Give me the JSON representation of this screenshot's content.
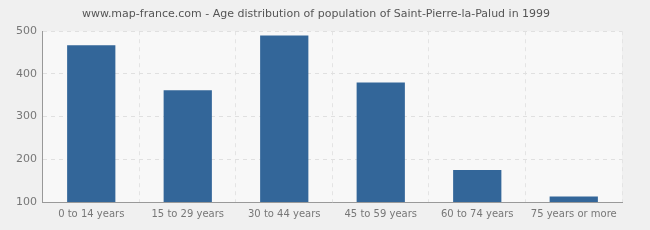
{
  "chart_data": {
    "type": "bar",
    "title": "www.map-france.com - Age distribution of population of Saint-Pierre-la-Palud in 1999",
    "categories": [
      "0 to 14 years",
      "15 to 29 years",
      "30 to 44 years",
      "45 to 59 years",
      "60 to 74 years",
      "75 years or more"
    ],
    "values": [
      467,
      362,
      490,
      380,
      175,
      113
    ],
    "color": "#336699",
    "ylim": [
      100,
      500
    ],
    "yticks": [
      100,
      200,
      300,
      400,
      500
    ],
    "grid": true
  }
}
